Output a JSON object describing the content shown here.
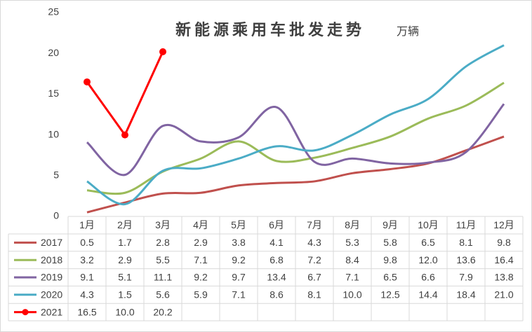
{
  "chart_data": {
    "type": "line",
    "title": "新能源乘用车批发走势",
    "subtitle": "万辆",
    "categories": [
      "1月",
      "2月",
      "3月",
      "4月",
      "5月",
      "6月",
      "7月",
      "8月",
      "9月",
      "10月",
      "11月",
      "12月"
    ],
    "ylim": [
      0,
      25
    ],
    "yticks": [
      0,
      5,
      10,
      15,
      20,
      25
    ],
    "grid": false,
    "data_table": true,
    "series": [
      {
        "name": "2017",
        "color": "#c0504d",
        "smooth": true,
        "marker": false,
        "values": [
          0.5,
          1.7,
          2.8,
          2.9,
          3.8,
          4.1,
          4.3,
          5.3,
          5.8,
          6.5,
          8.1,
          9.8
        ],
        "value_labels": [
          "0.5",
          "1.7",
          "2.8",
          "2.9",
          "3.8",
          "4.1",
          "4.3",
          "5.3",
          "5.8",
          "6.5",
          "8.1",
          "9.8"
        ]
      },
      {
        "name": "2018",
        "color": "#9bbb59",
        "smooth": true,
        "marker": false,
        "values": [
          3.2,
          2.9,
          5.5,
          7.1,
          9.2,
          6.8,
          7.2,
          8.4,
          9.8,
          12.0,
          13.6,
          16.4
        ],
        "value_labels": [
          "3.2",
          "2.9",
          "5.5",
          "7.1",
          "9.2",
          "6.8",
          "7.2",
          "8.4",
          "9.8",
          "12.0",
          "13.6",
          "16.4"
        ]
      },
      {
        "name": "2019",
        "color": "#8064a2",
        "smooth": true,
        "marker": false,
        "values": [
          9.1,
          5.1,
          11.1,
          9.2,
          9.7,
          13.4,
          6.7,
          7.1,
          6.5,
          6.6,
          7.9,
          13.8
        ],
        "value_labels": [
          "9.1",
          "5.1",
          "11.1",
          "9.2",
          "9.7",
          "13.4",
          "6.7",
          "7.1",
          "6.5",
          "6.6",
          "7.9",
          "13.8"
        ]
      },
      {
        "name": "2020",
        "color": "#4bacc6",
        "smooth": true,
        "marker": false,
        "values": [
          4.3,
          1.5,
          5.6,
          5.9,
          7.1,
          8.6,
          8.1,
          10.0,
          12.5,
          14.4,
          18.4,
          21.0
        ],
        "value_labels": [
          "4.3",
          "1.5",
          "5.6",
          "5.9",
          "7.1",
          "8.6",
          "8.1",
          "10.0",
          "12.5",
          "14.4",
          "18.4",
          "21.0"
        ]
      },
      {
        "name": "2021",
        "color": "#ff0000",
        "smooth": false,
        "marker": true,
        "values": [
          16.5,
          10.0,
          20.2,
          null,
          null,
          null,
          null,
          null,
          null,
          null,
          null,
          null
        ],
        "value_labels": [
          "16.5",
          "10.0",
          "20.2",
          null,
          null,
          null,
          null,
          null,
          null,
          null,
          null,
          null
        ]
      }
    ]
  }
}
